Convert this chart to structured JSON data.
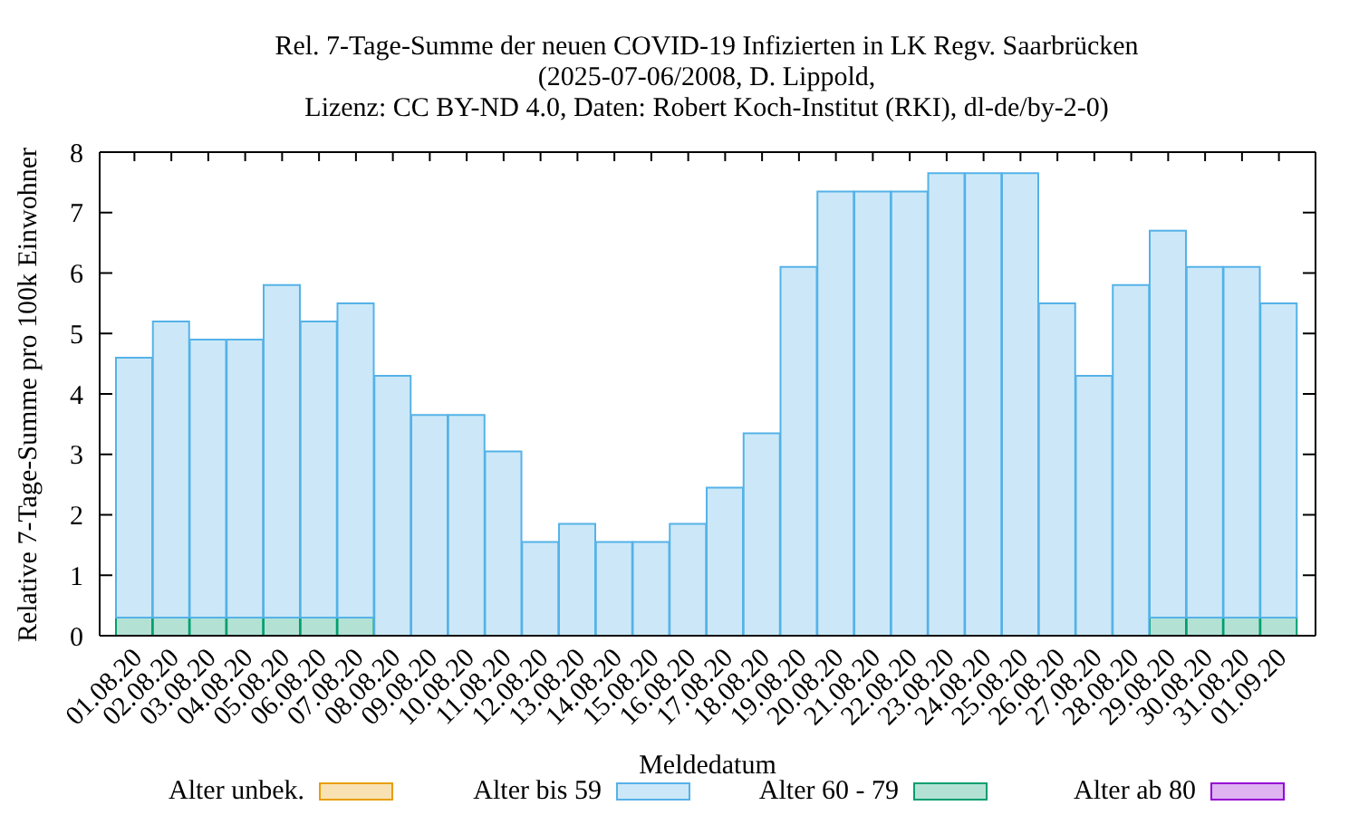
{
  "chart_data": {
    "type": "bar",
    "title": "Rel. 7-Tage-Summe der neuen COVID-19 Infizierten in LK Regv. Saarbrücken",
    "subtitle": "(2025-07-06/2008, D. Lippold,\nLizenz: CC BY-ND 4.0, Daten: Robert Koch-Institut (RKI), dl-de/by-2-0)",
    "xlabel": "Meldedatum",
    "ylabel": "Relative 7-Tage-Summe pro 100k Einwohner",
    "categories": [
      "01.08.20",
      "02.08.20",
      "03.08.20",
      "04.08.20",
      "05.08.20",
      "06.08.20",
      "07.08.20",
      "08.08.20",
      "09.08.20",
      "10.08.20",
      "11.08.20",
      "12.08.20",
      "13.08.20",
      "14.08.20",
      "15.08.20",
      "16.08.20",
      "17.08.20",
      "18.08.20",
      "19.08.20",
      "20.08.20",
      "21.08.20",
      "22.08.20",
      "23.08.20",
      "24.08.20",
      "25.08.20",
      "26.08.20",
      "27.08.20",
      "28.08.20",
      "29.08.20",
      "30.08.20",
      "31.08.20",
      "01.09.20"
    ],
    "series": [
      {
        "name": "Alter ab 80",
        "color": "#dfb3f2",
        "values": [
          0,
          0,
          0,
          0,
          0,
          0,
          0,
          0,
          0,
          0,
          0,
          0,
          0,
          0,
          0,
          0,
          0,
          0,
          0,
          0,
          0,
          0,
          0,
          0,
          0,
          0,
          0,
          0,
          0,
          0,
          0,
          0
        ]
      },
      {
        "name": "Alter 60 - 79",
        "color": "#b3e2d4",
        "values": [
          0.3,
          0.3,
          0.3,
          0.3,
          0.3,
          0.3,
          0.3,
          0,
          0,
          0,
          0,
          0,
          0,
          0,
          0,
          0,
          0,
          0,
          0,
          0,
          0,
          0,
          0,
          0,
          0,
          0,
          0,
          0,
          0.3,
          0.3,
          0.3,
          0.3
        ]
      },
      {
        "name": "Alter bis 59",
        "color": "#cce8f8",
        "values": [
          4.3,
          4.9,
          4.6,
          4.6,
          5.5,
          4.9,
          5.2,
          4.3,
          3.65,
          3.65,
          3.05,
          1.55,
          1.85,
          1.55,
          1.55,
          1.85,
          2.45,
          3.35,
          6.1,
          7.35,
          7.35,
          7.35,
          7.65,
          7.65,
          7.65,
          5.5,
          4.3,
          5.8,
          6.4,
          5.8,
          5.8,
          5.2
        ]
      },
      {
        "name": "Alter unbek.",
        "color": "#f8e2b3",
        "values": [
          0,
          0,
          0,
          0,
          0,
          0,
          0,
          0,
          0,
          0,
          0,
          0,
          0,
          0,
          0,
          0,
          0,
          0,
          0,
          0,
          0,
          0,
          0,
          0,
          0,
          0,
          0,
          0,
          0,
          0,
          0,
          0
        ]
      }
    ],
    "stacked": true,
    "ylim": [
      0,
      8
    ],
    "yticks": [
      0,
      1,
      2,
      3,
      4,
      5,
      6,
      7,
      8
    ],
    "grid": false,
    "legend": "bottom"
  }
}
